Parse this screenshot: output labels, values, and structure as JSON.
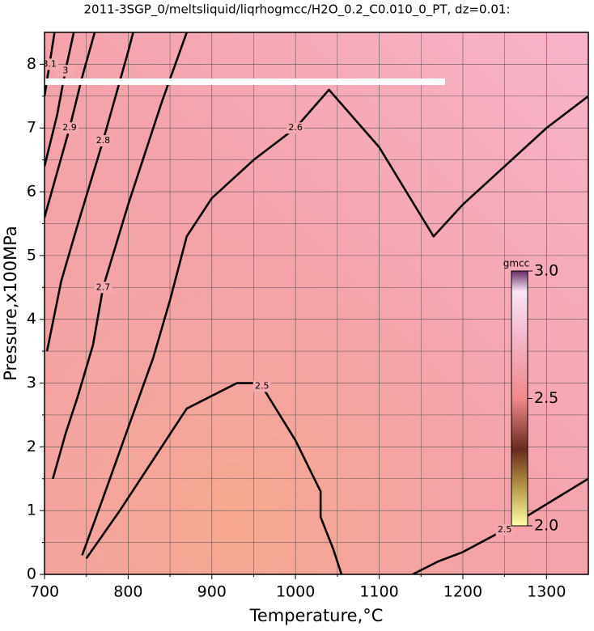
{
  "chart_data": {
    "type": "contour",
    "title": "2011-3SGP_0/meltsliquid/liqrhogmcc/H2O_0.2_C0.010_0_PT, dz=0.01:",
    "x_label": "Temperature,°C",
    "y_label": "Pressure,x100MPa",
    "xlim": [
      700,
      1350
    ],
    "ylim": [
      0,
      8.5
    ],
    "xticks": [
      700,
      800,
      900,
      1000,
      1100,
      1200,
      1300
    ],
    "yticks": [
      0,
      1,
      2,
      3,
      4,
      5,
      6,
      7,
      8
    ],
    "xminorticks": [
      750,
      850,
      950,
      1050,
      1150,
      1250
    ],
    "yminorticks": [
      0.5,
      1.5,
      2.5,
      3.5,
      4.5,
      5.5,
      6.5,
      7.5
    ],
    "grid": true,
    "contours": [
      {
        "level": 2.5,
        "x": [
          750,
          790,
          820,
          870,
          930,
          950,
          960,
          1000,
          1030,
          1030,
          1045,
          1055
        ],
        "y": [
          0.25,
          1.0,
          1.6,
          2.6,
          3.0,
          3.0,
          2.95,
          2.1,
          1.3,
          0.9,
          0.4,
          0
        ]
      },
      {
        "level": 2.5,
        "x": [
          1140,
          1170,
          1200,
          1250,
          1300,
          1350
        ],
        "y": [
          0,
          0.2,
          0.35,
          0.7,
          1.1,
          1.5
        ]
      },
      {
        "level": 2.6,
        "x": [
          745,
          770,
          800,
          830,
          850,
          870,
          900,
          950,
          1000,
          1040,
          1100,
          1165,
          1200,
          1250,
          1300,
          1350
        ],
        "y": [
          0.3,
          1.2,
          2.3,
          3.4,
          4.3,
          5.3,
          5.9,
          6.5,
          7.0,
          7.6,
          6.7,
          5.3,
          5.8,
          6.4,
          7.0,
          7.5
        ]
      },
      {
        "level": 2.7,
        "x": [
          710,
          725,
          740,
          758,
          770,
          800,
          840,
          870
        ],
        "y": [
          1.5,
          2.2,
          2.8,
          3.6,
          4.5,
          5.8,
          7.4,
          8.5
        ]
      },
      {
        "level": 2.8,
        "x": [
          703,
          720,
          740,
          770,
          800,
          806
        ],
        "y": [
          3.5,
          4.6,
          5.5,
          6.8,
          8.2,
          8.5
        ]
      },
      {
        "level": 2.9,
        "x": [
          700,
          715,
          730,
          745,
          760
        ],
        "y": [
          5.6,
          6.3,
          7.0,
          7.8,
          8.5
        ]
      },
      {
        "level": 3,
        "x": [
          700,
          715,
          725,
          735
        ],
        "y": [
          6.4,
          7.2,
          7.9,
          8.5
        ]
      },
      {
        "level": 3.1,
        "x": [
          700,
          706,
          712
        ],
        "y": [
          7.5,
          8.0,
          8.5
        ]
      }
    ],
    "colorbar": {
      "label": "gmcc",
      "lim": [
        2.0,
        3.0
      ],
      "ticks": [
        {
          "value": 2.0,
          "label": "2.0"
        },
        {
          "value": 2.5,
          "label": "2.5"
        },
        {
          "value": 3.0,
          "label": "3.0"
        }
      ]
    }
  }
}
